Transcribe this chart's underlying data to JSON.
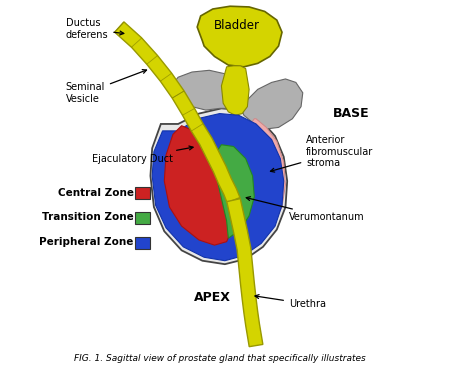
{
  "fig_caption": "FIG. 1. Sagittal view of prostate gland that specifically illustrates",
  "bg_color": "#ffffff",
  "labels": {
    "bladder": "Bladder",
    "base": "BASE",
    "apex": "APEX",
    "ductus": "Ductus\ndeferens",
    "seminal": "Seminal\nVesicle",
    "ejaculatory": "Ejaculatory Duct",
    "anterior": "Anterior\nfibromuscular\nstroma",
    "verumontanum": "Verumontanum",
    "urethra": "Urethra",
    "central": "Central Zone",
    "transition": "Transition Zone",
    "peripheral": "Peripheral Zone"
  },
  "colors": {
    "bladder_fill": "#d4d400",
    "central_zone": "#cc2222",
    "transition_zone": "#44aa44",
    "peripheral_zone": "#2244cc",
    "anterior_fibro": "#f0aaaa",
    "gray_zone": "#b0b0b0",
    "yellow": "#d4d400",
    "prostate_bg": "#e8e8e8"
  }
}
